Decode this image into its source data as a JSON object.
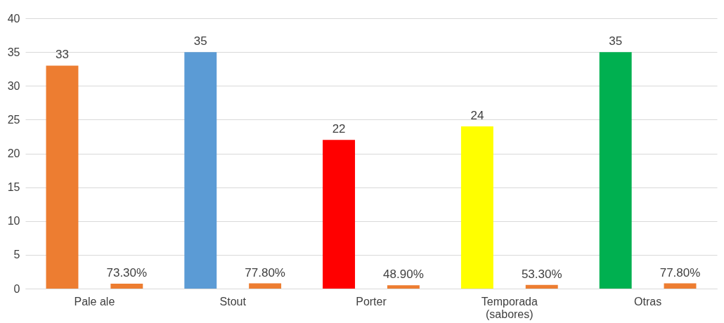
{
  "chart_data": {
    "type": "bar",
    "categories": [
      "Pale ale",
      "Stout",
      "Porter",
      "Temporada (sabores)",
      "Otras"
    ],
    "series": [
      {
        "colors": [
          "#ed7d31",
          "#5b9bd5",
          "#ff0000",
          "#ffff00",
          "#00b050"
        ],
        "values": [
          33,
          35,
          22,
          24,
          35
        ],
        "value_labels": [
          "33",
          "35",
          "22",
          "24",
          "35"
        ]
      },
      {
        "color": "#ed7d31",
        "values": [
          0.733,
          0.778,
          0.489,
          0.533,
          0.778
        ],
        "value_labels": [
          "73.30%",
          "77.80%",
          "48.90%",
          "53.30%",
          "77.80%"
        ]
      }
    ],
    "ylim": [
      0,
      40
    ],
    "yticks": [
      0,
      5,
      10,
      15,
      20,
      25,
      30,
      35,
      40
    ],
    "grid": "y"
  }
}
